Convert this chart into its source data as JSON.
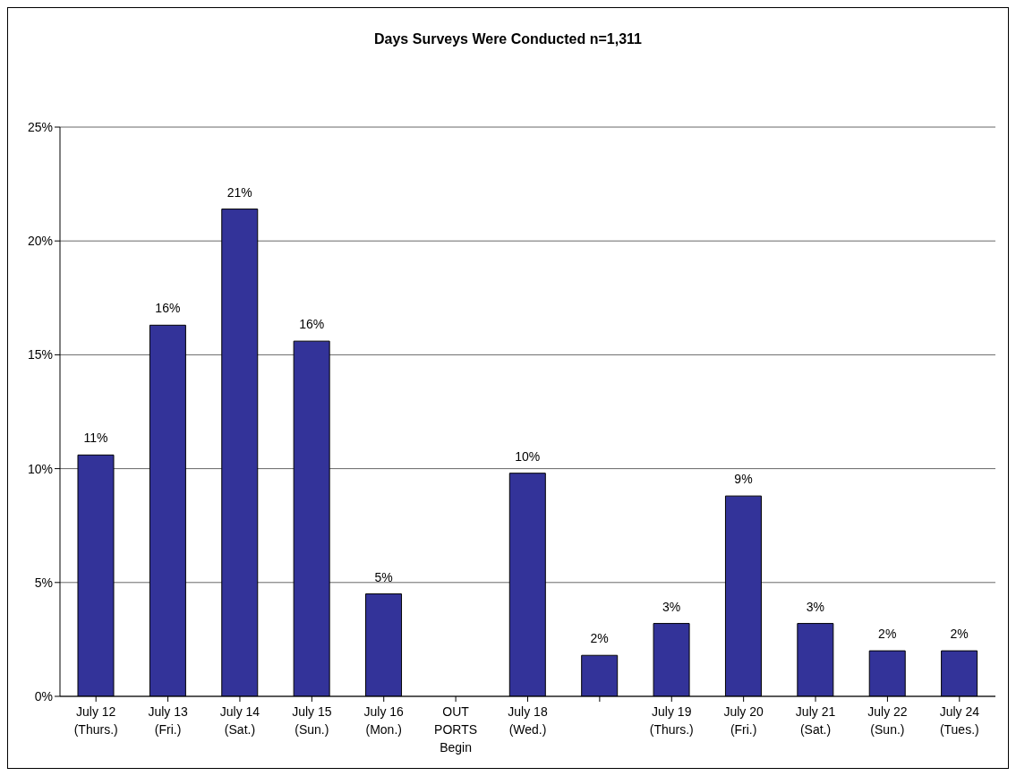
{
  "chart_data": {
    "type": "bar",
    "title": "Days Surveys Were Conducted n=1,311",
    "categories": [
      "July 12\n(Thurs.)",
      "July 13\n(Fri.)",
      "July 14\n(Sat.)",
      "July 15\n(Sun.)",
      "July 16\n(Mon.)",
      "OUT\nPORTS\nBegin",
      "July 18\n(Wed.)",
      null,
      "July 19\n(Thurs.)",
      "July 20\n(Fri.)",
      "July 21\n(Sat.)",
      "July 22\n(Sun.)",
      "July 24\n(Tues.)"
    ],
    "values": [
      10.6,
      16.3,
      21.4,
      15.6,
      4.5,
      null,
      9.8,
      1.8,
      3.2,
      8.8,
      3.2,
      2.0,
      2.0
    ],
    "value_labels": [
      "11%",
      "16%",
      "21%",
      "16%",
      "5%",
      null,
      "10%",
      "2%",
      "3%",
      "9%",
      "3%",
      "2%",
      "2%"
    ],
    "color": "#333399",
    "ylim": [
      0,
      25
    ],
    "yticks": [
      {
        "value": 0,
        "label": "0%"
      },
      {
        "value": 5,
        "label": "5%"
      },
      {
        "value": 10,
        "label": "10%"
      },
      {
        "value": 15,
        "label": "15%"
      },
      {
        "value": 20,
        "label": "20%"
      },
      {
        "value": 25,
        "label": "25%"
      }
    ],
    "grid": "y",
    "legend": false
  }
}
